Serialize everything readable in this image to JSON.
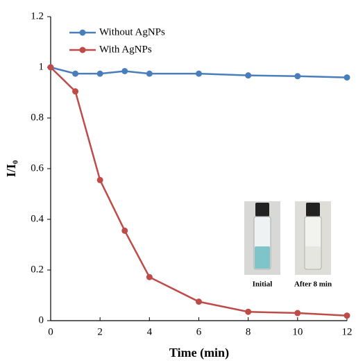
{
  "chart_data": {
    "type": "line",
    "x_label": "Time (min)",
    "y_label": "I/I₀",
    "x": [
      0,
      1,
      2,
      3,
      4,
      6,
      8,
      10,
      12
    ],
    "series": [
      {
        "name": "Without AgNPs",
        "color": "#4a7ebb",
        "values": [
          1,
          0.975,
          0.975,
          0.985,
          0.975,
          0.975,
          0.968,
          0.965,
          0.96
        ]
      },
      {
        "name": "With AgNPs",
        "color": "#be4b48",
        "values": [
          1,
          0.905,
          0.555,
          0.355,
          0.172,
          0.075,
          0.035,
          0.03,
          0.02
        ]
      }
    ],
    "xlim": [
      0,
      12
    ],
    "xticks": [
      0,
      2,
      4,
      6,
      8,
      10,
      12
    ],
    "ylim": [
      0,
      1.2
    ],
    "yticks": [
      0,
      0.2,
      0.4,
      0.6,
      0.8,
      1,
      1.2
    ],
    "legend": "top-left",
    "annotations": [
      "Initial",
      "After 8 min"
    ]
  }
}
